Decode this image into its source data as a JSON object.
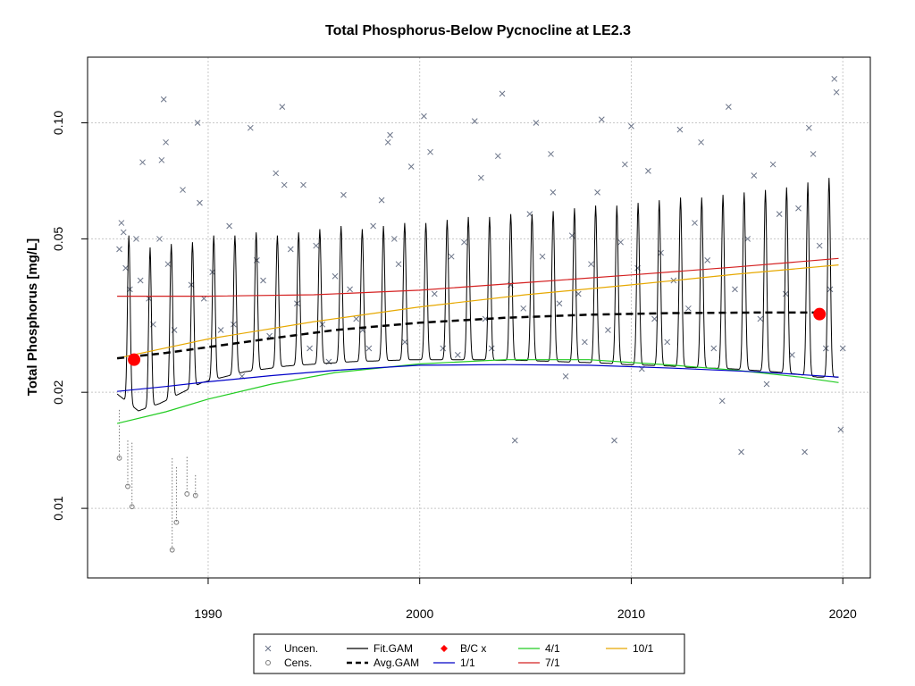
{
  "chart_data": {
    "type": "scatter",
    "title": "Total Phosphorus-Below Pycnocline at LE2.3",
    "xlabel": "",
    "ylabel": "Total Phosphorus [mg/L]",
    "xlim": [
      1984.3,
      2021.3
    ],
    "ylim": [
      0.0066,
      0.148
    ],
    "y_scale": "log",
    "x_ticks": [
      1990,
      2000,
      2010,
      2020
    ],
    "x_tick_labels": [
      "1990",
      "2000",
      "2010",
      "2020"
    ],
    "y_ticks": [
      0.01,
      0.02,
      0.05,
      0.1
    ],
    "y_tick_labels": [
      "0.01",
      "0.02",
      "0.05",
      "0.10"
    ],
    "grid": true,
    "legend_position": "bottom",
    "legend": [
      {
        "key": "uncen",
        "label": "Uncen."
      },
      {
        "key": "cens",
        "label": "Cens."
      },
      {
        "key": "fit_gam",
        "label": "Fit.GAM"
      },
      {
        "key": "avg_gam",
        "label": "Avg.GAM"
      },
      {
        "key": "bc",
        "label": "B/C x"
      },
      {
        "key": "s1",
        "label": "1/1"
      },
      {
        "key": "s4",
        "label": "4/1"
      },
      {
        "key": "s7",
        "label": "7/1"
      },
      {
        "key": "s10",
        "label": "10/1"
      }
    ],
    "colors": {
      "uncen": "#6b7488",
      "cens": "#7a7a7a",
      "fit_gam": "#000000",
      "avg_gam": "#000000",
      "bc": "#ff0000",
      "s1": "#0000c8",
      "s4": "#22cc22",
      "s7": "#d42020",
      "s10": "#e6a800"
    },
    "series": [
      {
        "key": "s7",
        "x": [
          1985.7,
          1990,
          1995,
          2000,
          2005,
          2010,
          2015,
          2019.8
        ],
        "y": [
          0.0355,
          0.0355,
          0.0358,
          0.0368,
          0.0385,
          0.0403,
          0.0423,
          0.0445
        ]
      },
      {
        "key": "s10",
        "x": [
          1985.7,
          1990,
          1995,
          2000,
          2005,
          2010,
          2015,
          2019.8
        ],
        "y": [
          0.0245,
          0.0275,
          0.0305,
          0.0333,
          0.0358,
          0.038,
          0.0405,
          0.0428
        ]
      },
      {
        "key": "s4",
        "x": [
          1985.7,
          1988,
          1990,
          1993,
          1996,
          2000,
          2004,
          2008,
          2012,
          2015,
          2018,
          2019.8
        ],
        "y": [
          0.0166,
          0.0178,
          0.0192,
          0.021,
          0.0225,
          0.0237,
          0.0243,
          0.0243,
          0.0235,
          0.0228,
          0.0219,
          0.0212
        ]
      },
      {
        "key": "s1",
        "x": [
          1985.7,
          1988,
          1990,
          1993,
          1996,
          2000,
          2004,
          2008,
          2012,
          2016,
          2019.8
        ],
        "y": [
          0.0201,
          0.0207,
          0.0213,
          0.0221,
          0.0228,
          0.0235,
          0.0236,
          0.0235,
          0.0231,
          0.0226,
          0.0219
        ]
      }
    ],
    "fit_gam": {
      "x_start": 1985.7,
      "x_end": 2019.8,
      "low_y": [
        0.0198,
        0.0179,
        0.0187,
        0.0199,
        0.0212,
        0.0219,
        0.0226,
        0.023,
        0.0234,
        0.0236,
        0.0238,
        0.024,
        0.0241,
        0.0242,
        0.0243,
        0.0243,
        0.0243,
        0.0243,
        0.0242,
        0.0242,
        0.0241,
        0.024,
        0.0239,
        0.0238,
        0.0236,
        0.0235,
        0.0234,
        0.0232,
        0.0231,
        0.023,
        0.0228,
        0.0226,
        0.0223,
        0.0219
      ],
      "peak_y": [
        0.051,
        0.0475,
        0.0485,
        0.049,
        0.051,
        0.051,
        0.052,
        0.051,
        0.052,
        0.053,
        0.054,
        0.053,
        0.054,
        0.055,
        0.055,
        0.056,
        0.057,
        0.057,
        0.058,
        0.058,
        0.059,
        0.06,
        0.061,
        0.061,
        0.062,
        0.063,
        0.064,
        0.064,
        0.065,
        0.066,
        0.067,
        0.068,
        0.07,
        0.072
      ]
    },
    "avg_gam": {
      "x": [
        1985.7,
        1988,
        1990,
        1993,
        1996,
        2000,
        2004,
        2008,
        2012,
        2016,
        2019
      ],
      "y": [
        0.0245,
        0.0253,
        0.0262,
        0.0276,
        0.029,
        0.0303,
        0.0312,
        0.0318,
        0.0321,
        0.0322,
        0.0322
      ]
    },
    "bc_points": [
      {
        "x": 1986.5,
        "y": 0.0243
      },
      {
        "x": 2018.9,
        "y": 0.0319
      }
    ],
    "uncensored": [
      {
        "x": 1985.8,
        "y": 0.047
      },
      {
        "x": 1985.9,
        "y": 0.055
      },
      {
        "x": 1986.0,
        "y": 0.052
      },
      {
        "x": 1986.1,
        "y": 0.042
      },
      {
        "x": 1986.3,
        "y": 0.037
      },
      {
        "x": 1986.6,
        "y": 0.05
      },
      {
        "x": 1986.8,
        "y": 0.039
      },
      {
        "x": 1986.9,
        "y": 0.079
      },
      {
        "x": 1987.2,
        "y": 0.035
      },
      {
        "x": 1987.4,
        "y": 0.03
      },
      {
        "x": 1987.7,
        "y": 0.05
      },
      {
        "x": 1987.8,
        "y": 0.08
      },
      {
        "x": 1987.9,
        "y": 0.115
      },
      {
        "x": 1988.0,
        "y": 0.089
      },
      {
        "x": 1988.1,
        "y": 0.043
      },
      {
        "x": 1988.4,
        "y": 0.029
      },
      {
        "x": 1988.8,
        "y": 0.067
      },
      {
        "x": 1989.2,
        "y": 0.038
      },
      {
        "x": 1989.5,
        "y": 0.1
      },
      {
        "x": 1989.6,
        "y": 0.062
      },
      {
        "x": 1989.8,
        "y": 0.035
      },
      {
        "x": 1990.2,
        "y": 0.041
      },
      {
        "x": 1990.6,
        "y": 0.029
      },
      {
        "x": 1991.0,
        "y": 0.054
      },
      {
        "x": 1991.2,
        "y": 0.03
      },
      {
        "x": 1991.6,
        "y": 0.022
      },
      {
        "x": 1992.0,
        "y": 0.097
      },
      {
        "x": 1992.3,
        "y": 0.044
      },
      {
        "x": 1992.6,
        "y": 0.039
      },
      {
        "x": 1992.9,
        "y": 0.028
      },
      {
        "x": 1993.2,
        "y": 0.074
      },
      {
        "x": 1993.5,
        "y": 0.11
      },
      {
        "x": 1993.6,
        "y": 0.069
      },
      {
        "x": 1993.9,
        "y": 0.047
      },
      {
        "x": 1994.2,
        "y": 0.034
      },
      {
        "x": 1994.5,
        "y": 0.069
      },
      {
        "x": 1994.8,
        "y": 0.026
      },
      {
        "x": 1995.1,
        "y": 0.048
      },
      {
        "x": 1995.4,
        "y": 0.03
      },
      {
        "x": 1995.7,
        "y": 0.024
      },
      {
        "x": 1996.0,
        "y": 0.04
      },
      {
        "x": 1996.4,
        "y": 0.065
      },
      {
        "x": 1996.7,
        "y": 0.037
      },
      {
        "x": 1997.0,
        "y": 0.031
      },
      {
        "x": 1997.3,
        "y": 0.029
      },
      {
        "x": 1997.6,
        "y": 0.026
      },
      {
        "x": 1997.8,
        "y": 0.054
      },
      {
        "x": 1998.2,
        "y": 0.063
      },
      {
        "x": 1998.5,
        "y": 0.089
      },
      {
        "x": 1998.6,
        "y": 0.093
      },
      {
        "x": 1998.8,
        "y": 0.05
      },
      {
        "x": 1999.0,
        "y": 0.043
      },
      {
        "x": 1999.3,
        "y": 0.027
      },
      {
        "x": 1999.6,
        "y": 0.077
      },
      {
        "x": 2000.2,
        "y": 0.104
      },
      {
        "x": 2000.5,
        "y": 0.084
      },
      {
        "x": 2000.7,
        "y": 0.036
      },
      {
        "x": 2001.1,
        "y": 0.026
      },
      {
        "x": 2001.5,
        "y": 0.045
      },
      {
        "x": 2001.8,
        "y": 0.025
      },
      {
        "x": 2002.1,
        "y": 0.049
      },
      {
        "x": 2002.6,
        "y": 0.101
      },
      {
        "x": 2002.9,
        "y": 0.072
      },
      {
        "x": 2003.1,
        "y": 0.031
      },
      {
        "x": 2003.4,
        "y": 0.026
      },
      {
        "x": 2003.7,
        "y": 0.082
      },
      {
        "x": 2003.9,
        "y": 0.119
      },
      {
        "x": 2004.3,
        "y": 0.038
      },
      {
        "x": 2004.5,
        "y": 0.015
      },
      {
        "x": 2004.9,
        "y": 0.033
      },
      {
        "x": 2005.2,
        "y": 0.058
      },
      {
        "x": 2005.5,
        "y": 0.1
      },
      {
        "x": 2005.8,
        "y": 0.045
      },
      {
        "x": 2006.2,
        "y": 0.083
      },
      {
        "x": 2006.3,
        "y": 0.066
      },
      {
        "x": 2006.6,
        "y": 0.034
      },
      {
        "x": 2006.9,
        "y": 0.022
      },
      {
        "x": 2007.2,
        "y": 0.051
      },
      {
        "x": 2007.5,
        "y": 0.036
      },
      {
        "x": 2007.8,
        "y": 0.027
      },
      {
        "x": 2008.1,
        "y": 0.043
      },
      {
        "x": 2008.4,
        "y": 0.066
      },
      {
        "x": 2008.6,
        "y": 0.102
      },
      {
        "x": 2008.9,
        "y": 0.029
      },
      {
        "x": 2009.2,
        "y": 0.015
      },
      {
        "x": 2009.5,
        "y": 0.049
      },
      {
        "x": 2009.7,
        "y": 0.078
      },
      {
        "x": 2010.0,
        "y": 0.098
      },
      {
        "x": 2010.3,
        "y": 0.042
      },
      {
        "x": 2010.5,
        "y": 0.023
      },
      {
        "x": 2010.8,
        "y": 0.075
      },
      {
        "x": 2011.1,
        "y": 0.031
      },
      {
        "x": 2011.4,
        "y": 0.046
      },
      {
        "x": 2011.7,
        "y": 0.027
      },
      {
        "x": 2012.0,
        "y": 0.039
      },
      {
        "x": 2012.3,
        "y": 0.096
      },
      {
        "x": 2012.7,
        "y": 0.033
      },
      {
        "x": 2013.0,
        "y": 0.055
      },
      {
        "x": 2013.3,
        "y": 0.089
      },
      {
        "x": 2013.6,
        "y": 0.044
      },
      {
        "x": 2013.9,
        "y": 0.026
      },
      {
        "x": 2014.3,
        "y": 0.019
      },
      {
        "x": 2014.6,
        "y": 0.11
      },
      {
        "x": 2014.9,
        "y": 0.037
      },
      {
        "x": 2015.2,
        "y": 0.014
      },
      {
        "x": 2015.5,
        "y": 0.05
      },
      {
        "x": 2015.8,
        "y": 0.073
      },
      {
        "x": 2016.1,
        "y": 0.031
      },
      {
        "x": 2016.4,
        "y": 0.021
      },
      {
        "x": 2016.7,
        "y": 0.078
      },
      {
        "x": 2017.0,
        "y": 0.058
      },
      {
        "x": 2017.3,
        "y": 0.036
      },
      {
        "x": 2017.6,
        "y": 0.025
      },
      {
        "x": 2017.9,
        "y": 0.06
      },
      {
        "x": 2018.2,
        "y": 0.014
      },
      {
        "x": 2018.4,
        "y": 0.097
      },
      {
        "x": 2018.6,
        "y": 0.083
      },
      {
        "x": 2018.9,
        "y": 0.048
      },
      {
        "x": 2019.2,
        "y": 0.026
      },
      {
        "x": 2019.4,
        "y": 0.037
      },
      {
        "x": 2019.6,
        "y": 0.13
      },
      {
        "x": 2019.7,
        "y": 0.12
      },
      {
        "x": 2019.9,
        "y": 0.016
      },
      {
        "x": 2020.0,
        "y": 0.026
      }
    ],
    "censored": [
      {
        "x": 1985.8,
        "y": 0.0135,
        "y_from": 0.018
      },
      {
        "x": 1986.2,
        "y": 0.0114,
        "y_from": 0.015
      },
      {
        "x": 1986.4,
        "y": 0.0101,
        "y_from": 0.0148
      },
      {
        "x": 1988.3,
        "y": 0.0078,
        "y_from": 0.0135
      },
      {
        "x": 1988.5,
        "y": 0.0092,
        "y_from": 0.0128
      },
      {
        "x": 1989.0,
        "y": 0.0109,
        "y_from": 0.0136
      },
      {
        "x": 1989.4,
        "y": 0.0108,
        "y_from": 0.0122
      }
    ]
  }
}
